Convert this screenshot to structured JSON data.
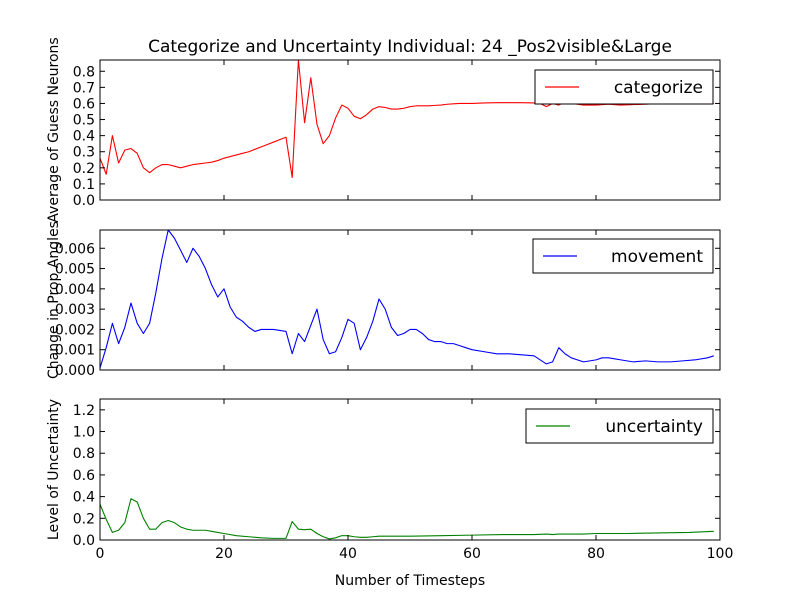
{
  "chart_data": [
    {
      "type": "line",
      "title": "Categorize and Uncertainty Individual: 24 _Pos2visible&Large",
      "xlabel": "",
      "ylabel": "Average of Guess Neurons",
      "xlim": [
        0,
        100
      ],
      "ylim": [
        0,
        0.87
      ],
      "yticks": [
        0.0,
        0.1,
        0.2,
        0.3,
        0.4,
        0.5,
        0.6,
        0.7,
        0.8
      ],
      "ytick_labels": [
        "0.0",
        "0.1",
        "0.2",
        "0.3",
        "0.4",
        "0.5",
        "0.6",
        "0.7",
        "0.8"
      ],
      "xticks": [
        0,
        20,
        40,
        60,
        80,
        100
      ],
      "xtick_labels_visible": false,
      "legend": "top-right",
      "series": [
        {
          "name": "categorize",
          "color": "#ff0000",
          "x": [
            0,
            1,
            2,
            3,
            4,
            5,
            6,
            7,
            8,
            9,
            10,
            11,
            12,
            13,
            14,
            15,
            16,
            17,
            18,
            19,
            20,
            21,
            22,
            23,
            24,
            25,
            26,
            27,
            28,
            29,
            30,
            31,
            32,
            33,
            34,
            35,
            36,
            37,
            38,
            39,
            40,
            41,
            42,
            43,
            44,
            45,
            46,
            47,
            48,
            49,
            50,
            51,
            52,
            53,
            54,
            55,
            56,
            57,
            58,
            59,
            60,
            62,
            64,
            66,
            68,
            70,
            71,
            72,
            73,
            74,
            75,
            76,
            77,
            78,
            79,
            80,
            82,
            84,
            86,
            88,
            90,
            92,
            94,
            96,
            98,
            99
          ],
          "values": [
            0.26,
            0.16,
            0.4,
            0.23,
            0.31,
            0.32,
            0.29,
            0.2,
            0.17,
            0.2,
            0.22,
            0.22,
            0.21,
            0.2,
            0.21,
            0.22,
            0.225,
            0.23,
            0.235,
            0.245,
            0.26,
            0.27,
            0.28,
            0.29,
            0.3,
            0.315,
            0.33,
            0.345,
            0.36,
            0.375,
            0.39,
            0.14,
            0.87,
            0.48,
            0.76,
            0.47,
            0.35,
            0.4,
            0.51,
            0.59,
            0.57,
            0.52,
            0.505,
            0.53,
            0.565,
            0.58,
            0.575,
            0.565,
            0.565,
            0.57,
            0.58,
            0.585,
            0.585,
            0.585,
            0.588,
            0.59,
            0.595,
            0.598,
            0.6,
            0.6,
            0.6,
            0.603,
            0.605,
            0.605,
            0.605,
            0.603,
            0.6,
            0.58,
            0.6,
            0.59,
            0.61,
            0.6,
            0.595,
            0.59,
            0.59,
            0.59,
            0.595,
            0.59,
            0.593,
            0.595,
            0.6,
            0.6,
            0.6,
            0.6,
            0.6,
            0.6
          ]
        }
      ]
    },
    {
      "type": "line",
      "title": "",
      "xlabel": "",
      "ylabel": "Change in Prop Angles",
      "xlim": [
        0,
        100
      ],
      "ylim": [
        0,
        0.0069
      ],
      "yticks": [
        0.0,
        0.001,
        0.002,
        0.003,
        0.004,
        0.005,
        0.006
      ],
      "ytick_labels": [
        "0.000",
        "0.001",
        "0.002",
        "0.003",
        "0.004",
        "0.005",
        "0.006"
      ],
      "xticks": [
        0,
        20,
        40,
        60,
        80,
        100
      ],
      "xtick_labels_visible": false,
      "legend": "top-right",
      "series": [
        {
          "name": "movement",
          "color": "#0000ff",
          "x": [
            0,
            1,
            2,
            3,
            4,
            5,
            6,
            7,
            8,
            9,
            10,
            11,
            12,
            13,
            14,
            15,
            16,
            17,
            18,
            19,
            20,
            21,
            22,
            23,
            24,
            25,
            26,
            27,
            28,
            29,
            30,
            31,
            32,
            33,
            34,
            35,
            36,
            37,
            38,
            39,
            40,
            41,
            42,
            43,
            44,
            45,
            46,
            47,
            48,
            49,
            50,
            51,
            52,
            53,
            54,
            55,
            56,
            57,
            58,
            59,
            60,
            62,
            64,
            66,
            68,
            70,
            72,
            73,
            74,
            75,
            76,
            77,
            78,
            79,
            80,
            81,
            82,
            83,
            84,
            85,
            86,
            88,
            90,
            92,
            94,
            96,
            98,
            99
          ],
          "values": [
            0.0001,
            0.0011,
            0.0023,
            0.0013,
            0.0021,
            0.0033,
            0.0023,
            0.0018,
            0.0023,
            0.0038,
            0.0055,
            0.0069,
            0.0065,
            0.0059,
            0.0053,
            0.006,
            0.0056,
            0.005,
            0.0042,
            0.0036,
            0.004,
            0.0031,
            0.0026,
            0.0024,
            0.0021,
            0.0019,
            0.002,
            0.002,
            0.002,
            0.00195,
            0.0019,
            0.0008,
            0.0018,
            0.0014,
            0.0022,
            0.003,
            0.0015,
            0.0008,
            0.0009,
            0.0016,
            0.0025,
            0.0023,
            0.001,
            0.0016,
            0.0024,
            0.0035,
            0.003,
            0.0021,
            0.0017,
            0.0018,
            0.002,
            0.002,
            0.0018,
            0.0015,
            0.0014,
            0.0014,
            0.0013,
            0.0013,
            0.0012,
            0.0011,
            0.001,
            0.0009,
            0.0008,
            0.0008,
            0.00075,
            0.0007,
            0.0003,
            0.0004,
            0.0011,
            0.0008,
            0.0006,
            0.0005,
            0.0004,
            0.00045,
            0.0005,
            0.0006,
            0.0006,
            0.00055,
            0.0005,
            0.00045,
            0.0004,
            0.00045,
            0.0004,
            0.0004,
            0.00045,
            0.0005,
            0.0006,
            0.0007
          ]
        }
      ]
    },
    {
      "type": "line",
      "title": "",
      "xlabel": "Number of Timesteps",
      "ylabel": "Level of Uncertainty",
      "xlim": [
        0,
        100
      ],
      "ylim": [
        0,
        1.3
      ],
      "yticks": [
        0.0,
        0.2,
        0.4,
        0.6,
        0.8,
        1.0,
        1.2
      ],
      "ytick_labels": [
        "0.0",
        "0.2",
        "0.4",
        "0.6",
        "0.8",
        "1.0",
        "1.2"
      ],
      "xticks": [
        0,
        20,
        40,
        60,
        80,
        100
      ],
      "xtick_labels": [
        "0",
        "20",
        "40",
        "60",
        "80",
        "100"
      ],
      "legend": "top-right",
      "series": [
        {
          "name": "uncertainty",
          "color": "#008000",
          "x": [
            0,
            1,
            2,
            3,
            4,
            5,
            6,
            7,
            8,
            9,
            10,
            11,
            12,
            13,
            14,
            15,
            16,
            17,
            18,
            19,
            20,
            22,
            24,
            26,
            28,
            30,
            31,
            32,
            33,
            34,
            35,
            36,
            37,
            38,
            39,
            40,
            41,
            42,
            43,
            44,
            45,
            46,
            47,
            48,
            50,
            55,
            60,
            65,
            70,
            72,
            73,
            74,
            75,
            76,
            77,
            78,
            80,
            85,
            90,
            95,
            99
          ],
          "values": [
            0.33,
            0.19,
            0.07,
            0.09,
            0.16,
            0.38,
            0.35,
            0.2,
            0.1,
            0.1,
            0.16,
            0.18,
            0.16,
            0.12,
            0.1,
            0.09,
            0.09,
            0.09,
            0.08,
            0.07,
            0.06,
            0.04,
            0.03,
            0.02,
            0.015,
            0.015,
            0.17,
            0.1,
            0.095,
            0.1,
            0.06,
            0.03,
            0.01,
            0.02,
            0.04,
            0.04,
            0.03,
            0.025,
            0.025,
            0.03,
            0.035,
            0.035,
            0.035,
            0.035,
            0.035,
            0.04,
            0.045,
            0.05,
            0.05,
            0.055,
            0.05,
            0.055,
            0.055,
            0.055,
            0.055,
            0.055,
            0.06,
            0.06,
            0.065,
            0.07,
            0.08
          ]
        }
      ]
    }
  ]
}
